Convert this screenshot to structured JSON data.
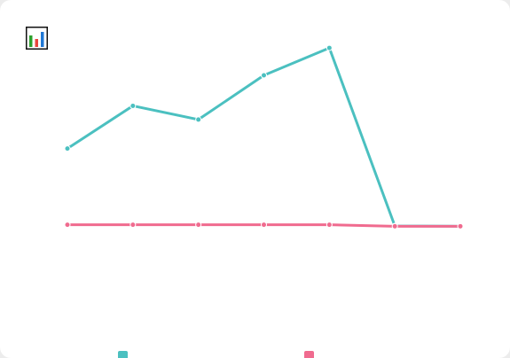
{
  "icon": {
    "name": "bar-chart-icon"
  },
  "chart_data": {
    "type": "line",
    "title": "",
    "xlabel": "",
    "ylabel": "",
    "x": [
      1,
      2,
      3,
      4,
      5,
      6,
      7
    ],
    "ylim": [
      0,
      100
    ],
    "grid": false,
    "legend_position": "bottom",
    "series": [
      {
        "values": [
          60,
          74,
          69.5,
          84,
          93,
          34.6,
          34.5
        ],
        "color": "#4bc0c0"
      },
      {
        "values": [
          35,
          35,
          35,
          35,
          35,
          34.5,
          34.5
        ],
        "color": "#f06b8f"
      }
    ]
  }
}
